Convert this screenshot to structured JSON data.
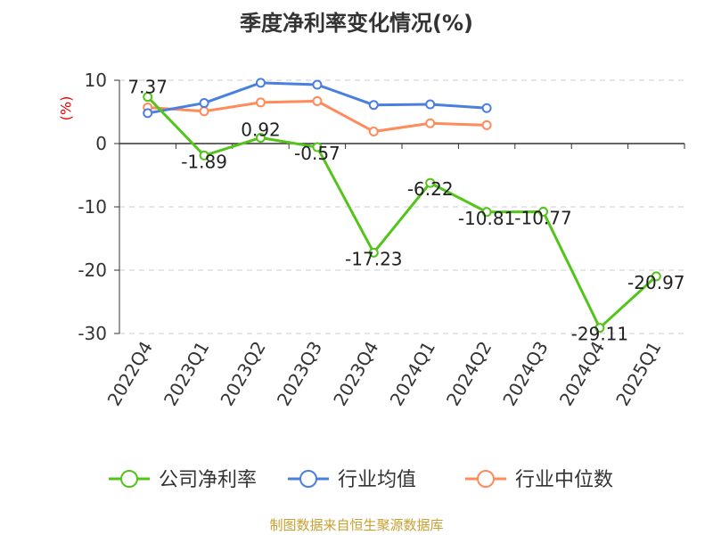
{
  "chart_data": {
    "type": "line",
    "title": "季度净利率变化情况(%)",
    "ylabel": "(%)",
    "xlabel": "",
    "ylim": [
      -30,
      10
    ],
    "yticks": [
      10,
      0,
      -10,
      -20,
      -30
    ],
    "grid": true,
    "legend_position": "bottom",
    "categories": [
      "2022Q4",
      "2023Q1",
      "2023Q2",
      "2023Q3",
      "2023Q4",
      "2024Q1",
      "2024Q2",
      "2024Q3",
      "2024Q4",
      "2025Q1"
    ],
    "series": [
      {
        "name": "公司净利率",
        "color": "#52c41a",
        "labeled": true,
        "values": [
          7.37,
          -1.89,
          0.92,
          -0.57,
          -17.23,
          -6.22,
          -10.81,
          -10.77,
          -29.11,
          -20.97
        ]
      },
      {
        "name": "行业均值",
        "color": "#4a7fe0",
        "labeled": false,
        "values": [
          4.8,
          6.4,
          9.6,
          9.3,
          6.1,
          6.2,
          5.6,
          null,
          null,
          null
        ]
      },
      {
        "name": "行业中位数",
        "color": "#ff8a5a",
        "labeled": false,
        "values": [
          5.7,
          5.1,
          6.5,
          6.7,
          1.9,
          3.2,
          2.9,
          null,
          null,
          null
        ]
      }
    ]
  },
  "source": "制图数据来自恒生聚源数据库"
}
